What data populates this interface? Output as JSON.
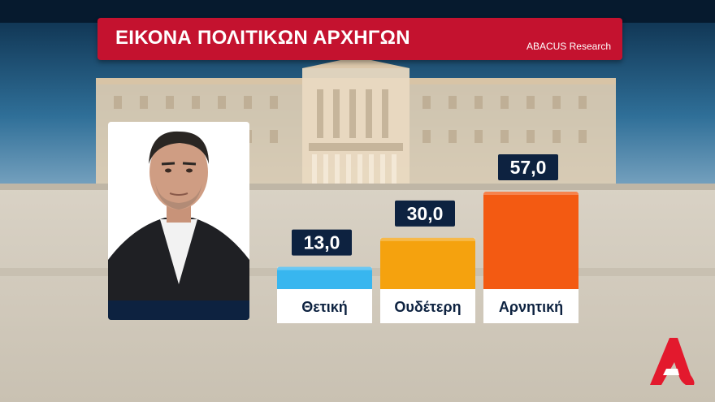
{
  "header": {
    "title": "ΕΙΚΟΝΑ ΠΟΛΙΤΙΚΩΝ ΑΡΧΗΓΩΝ",
    "source": "ABACUS Research"
  },
  "colors": {
    "title_bar": "#c4122f",
    "label_box": "#0d2240",
    "positive": "#38b6ef",
    "neutral": "#f5a20e",
    "negative": "#f35a12"
  },
  "chart_data": {
    "type": "bar",
    "title": "ΕΙΚΟΝΑ ΠΟΛΙΤΙΚΩΝ ΑΡΧΗΓΩΝ",
    "categories": [
      "Θετική",
      "Ουδέτερη",
      "Αρνητική"
    ],
    "values": [
      13.0,
      30.0,
      57.0
    ],
    "value_labels": [
      "13,0",
      "30,0",
      "57,0"
    ],
    "ylim": [
      0,
      60
    ],
    "grid": false,
    "legend": "none"
  },
  "logo": {
    "icon": "alpha-channel-logo"
  }
}
